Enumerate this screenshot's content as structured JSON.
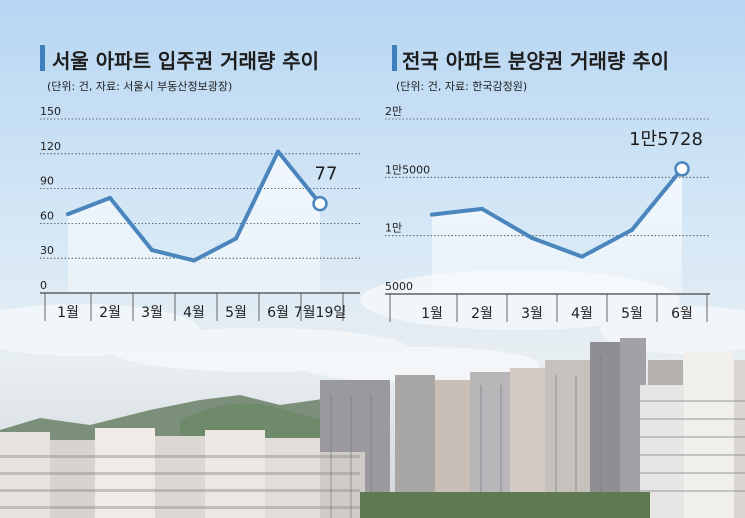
{
  "colors": {
    "line": "#4a86bd",
    "accent_bar": "#3f7fbe",
    "text": "#1e1e1e",
    "grid": "#444444"
  },
  "chart_data": [
    {
      "type": "line",
      "title": "서울 아파트 입주권 거래량 추이",
      "subtitle": "(단위: 건, 자료: 서울시 부동산정보광장)",
      "categories": [
        "1월",
        "2월",
        "3월",
        "4월",
        "5월",
        "6월",
        "7월19일"
      ],
      "series": [
        {
          "values": [
            68,
            82,
            37,
            28,
            47,
            122,
            77
          ]
        }
      ],
      "y_ticks": [
        "0",
        "30",
        "60",
        "90",
        "120",
        "150"
      ],
      "ylim": [
        0,
        150
      ],
      "annotations": [
        {
          "index": 6,
          "text": "77"
        }
      ],
      "grid": true
    },
    {
      "type": "line",
      "title": "전국 아파트 분양권 거래량 추이",
      "subtitle": "(단위: 건, 자료: 한국감정원)",
      "categories": [
        "1월",
        "2월",
        "3월",
        "4월",
        "5월",
        "6월"
      ],
      "series": [
        {
          "values": [
            11800,
            12300,
            9800,
            8200,
            10500,
            15728
          ]
        }
      ],
      "y_ticks": [
        "5000",
        "1만",
        "1만5000",
        "2만"
      ],
      "ylim": [
        5000,
        20000
      ],
      "annotations": [
        {
          "index": 5,
          "text": "1만5728"
        }
      ],
      "grid": true
    }
  ]
}
